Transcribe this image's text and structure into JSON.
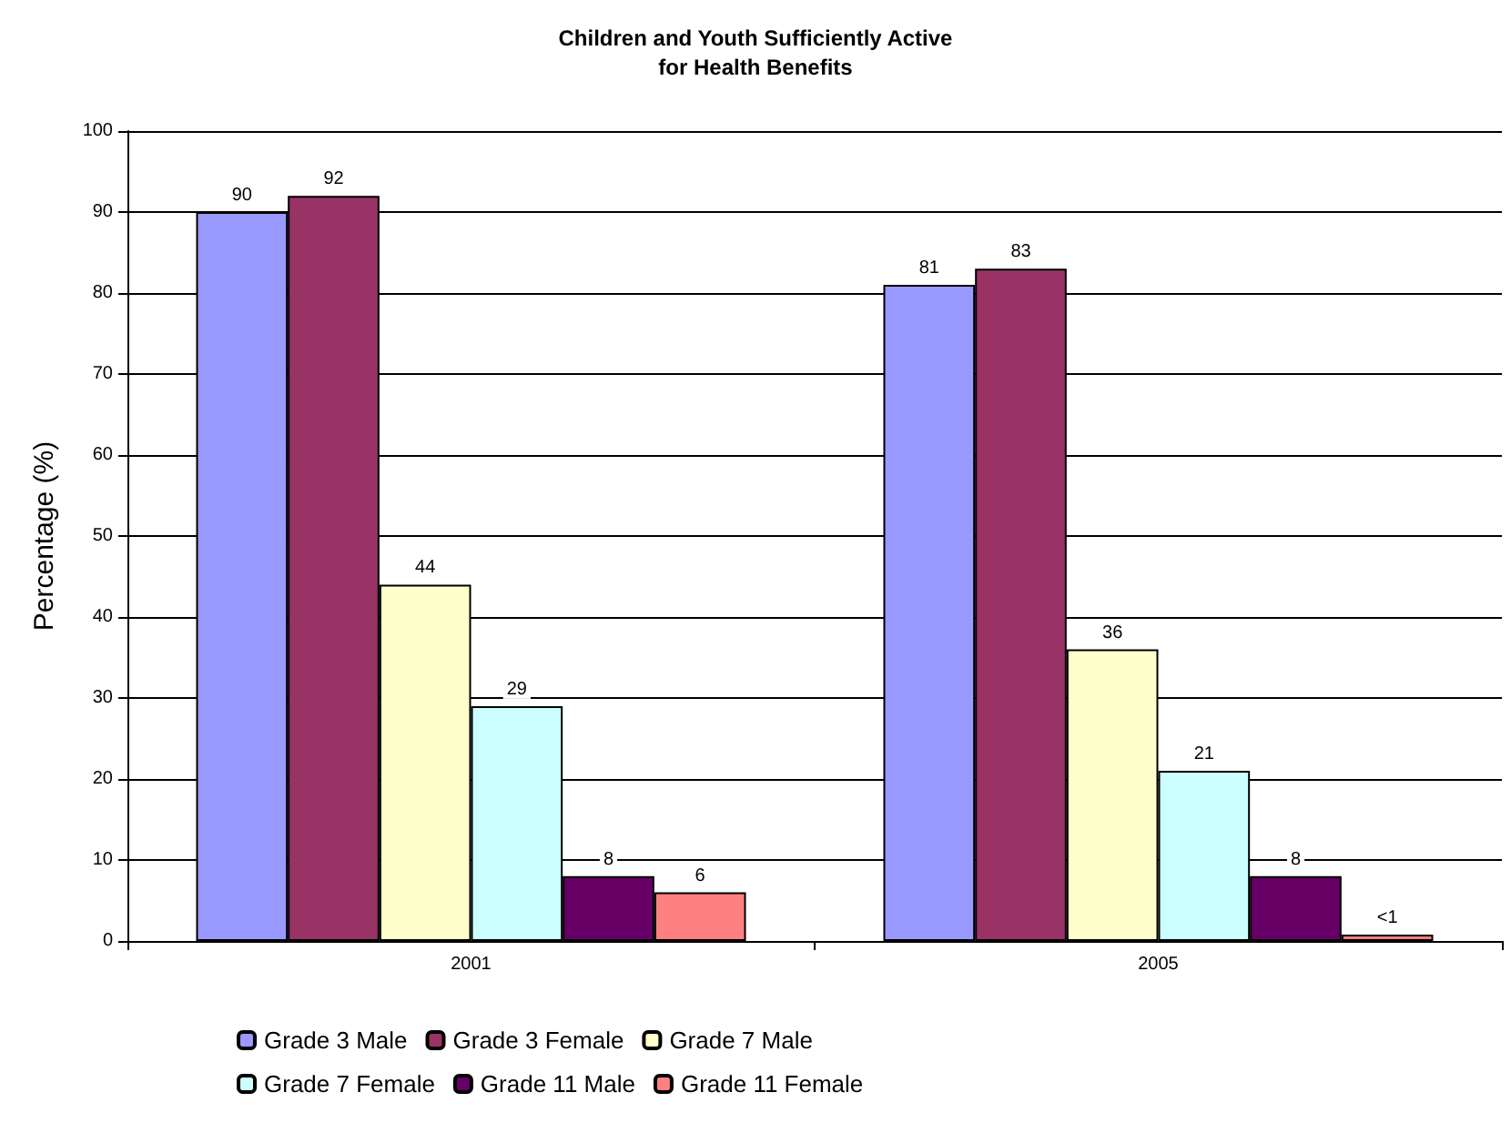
{
  "chart_data": {
    "type": "bar",
    "title": "Children and Youth Sufficiently Active\nfor Health Benefits",
    "ylabel": "Percentage (%)",
    "categories": [
      "2001",
      "2005"
    ],
    "series": [
      {
        "name": "Grade 3 Male",
        "color": "#9999ff",
        "values": [
          90,
          81
        ],
        "value_labels": [
          "90",
          "81"
        ]
      },
      {
        "name": "Grade 3 Female",
        "color": "#993366",
        "values": [
          92,
          83
        ],
        "value_labels": [
          "92",
          "83"
        ]
      },
      {
        "name": "Grade 7 Male",
        "color": "#ffffcc",
        "values": [
          44,
          36
        ],
        "value_labels": [
          "44",
          "36"
        ]
      },
      {
        "name": "Grade 7 Female",
        "color": "#ccffff",
        "values": [
          29,
          21
        ],
        "value_labels": [
          "29",
          "21"
        ]
      },
      {
        "name": "Grade 11 Male",
        "color": "#660066",
        "values": [
          8,
          8
        ],
        "value_labels": [
          "8",
          "8"
        ]
      },
      {
        "name": "Grade 11 Female",
        "color": "#ff8080",
        "values": [
          6,
          0.8
        ],
        "value_labels": [
          "6",
          "<1"
        ]
      }
    ],
    "ylim": [
      0,
      100
    ],
    "yticks": [
      0,
      10,
      20,
      30,
      40,
      50,
      60,
      70,
      80,
      90,
      100
    ],
    "grid": "y",
    "legend": "bottom"
  }
}
